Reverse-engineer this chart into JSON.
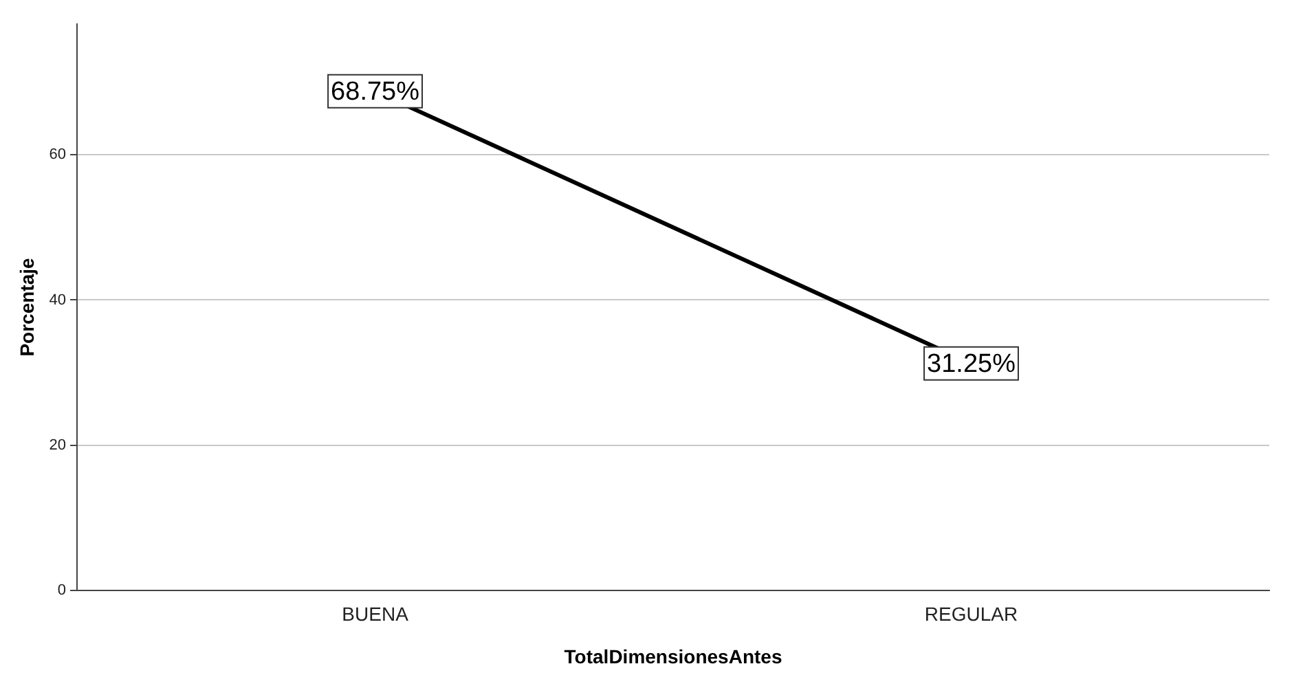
{
  "chart_data": {
    "type": "line",
    "xlabel": "TotalDimensionesAntes",
    "ylabel": "Porcentaje",
    "categories": [
      "BUENA",
      "REGULAR"
    ],
    "series": [
      {
        "color": "#000000",
        "values": [
          68.75,
          31.25
        ],
        "value_labels": [
          "68.75%",
          "31.25%"
        ]
      }
    ],
    "ylim": [
      0,
      78
    ],
    "yticks": [
      0,
      20,
      40,
      60
    ],
    "grid": "y",
    "line_style": "solid"
  }
}
